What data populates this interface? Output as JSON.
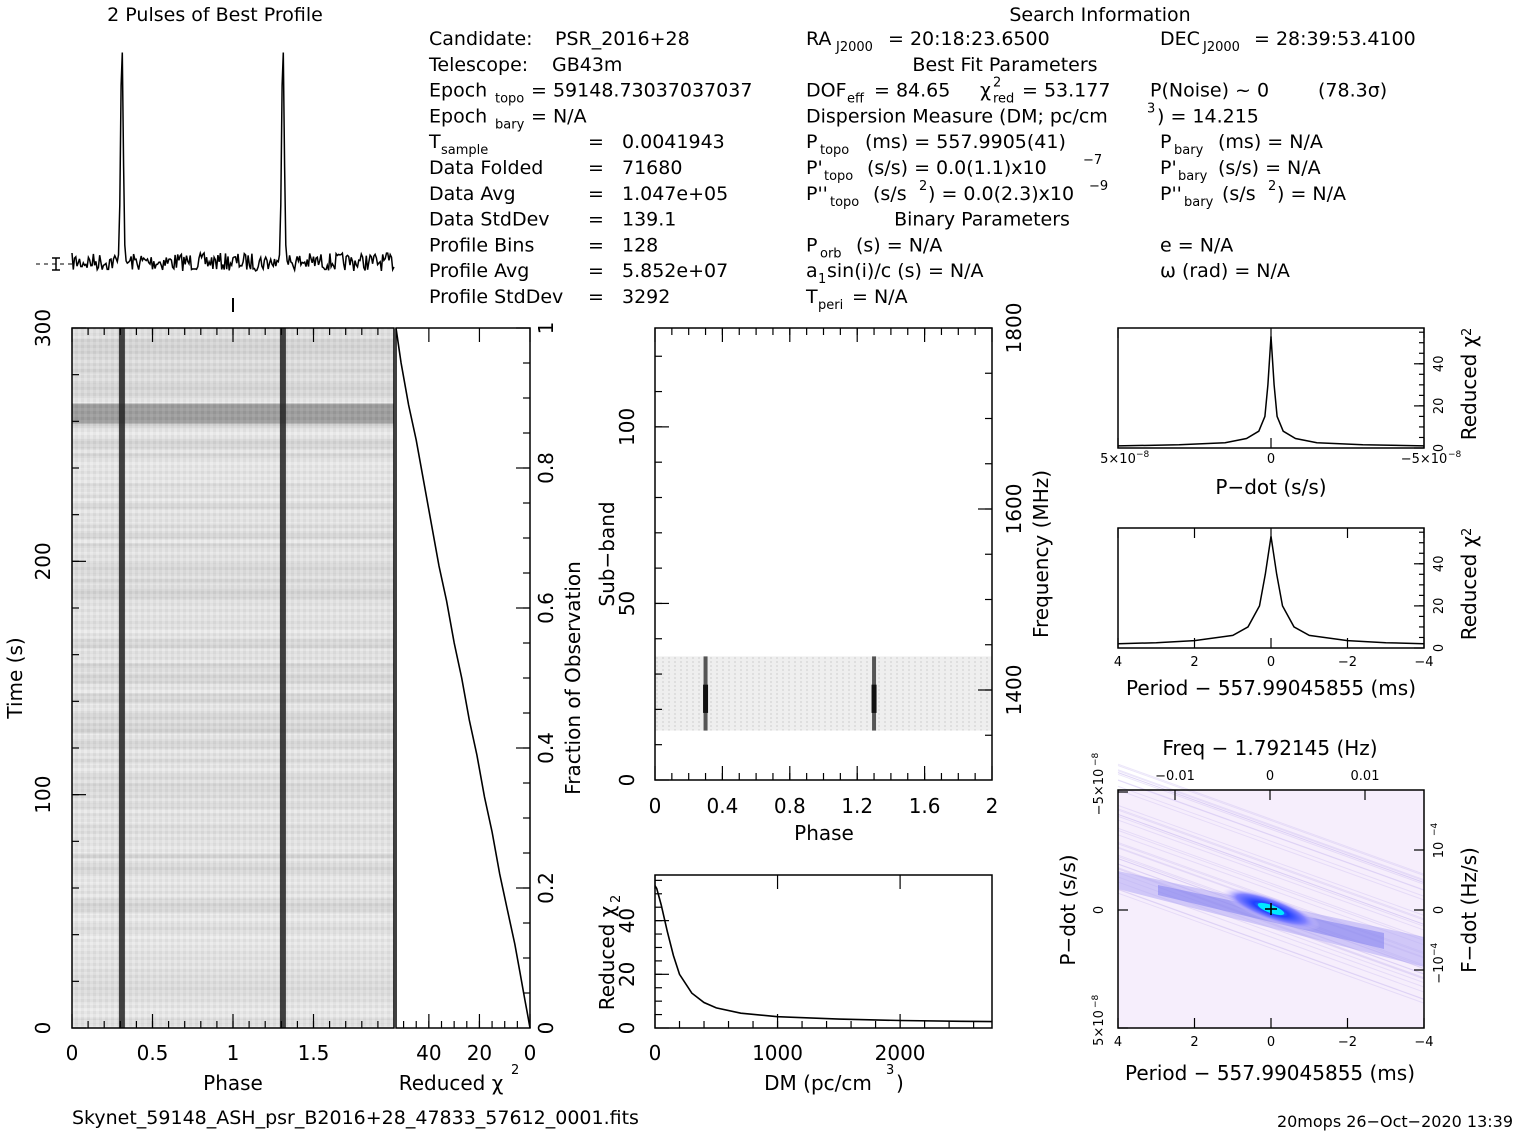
{
  "title": "2 Pulses of Best Profile",
  "search_info_heading": "Search Information",
  "info_left": [
    {
      "label": "Candidate:",
      "value": "PSR_2016+28"
    },
    {
      "label": "Telescope:",
      "value": "GB43m"
    },
    {
      "label": "Epoch",
      "sub": "topo",
      "value": "= 59148.73037037037"
    },
    {
      "label": "Epoch",
      "sub": "bary",
      "value": "= N/A"
    },
    {
      "label": "T",
      "sub": "sample",
      "value": "0.0041943"
    },
    {
      "label": "Data Folded",
      "value": "71680"
    },
    {
      "label": "Data Avg",
      "value": "1.047e+05"
    },
    {
      "label": "Data StdDev",
      "value": "139.1"
    },
    {
      "label": "Profile Bins",
      "value": "128"
    },
    {
      "label": "Profile Avg",
      "value": "5.852e+07"
    },
    {
      "label": "Profile StdDev",
      "value": "3292"
    }
  ],
  "info_right": {
    "ra_label": "RA",
    "ra_sub": "J2000",
    "ra_value": "= 20:18:23.6500",
    "dec_label": "DEC",
    "dec_sub": "J2000",
    "dec_value": "= 28:39:53.4100",
    "best_fit_heading": "Best Fit Parameters",
    "dof_label": "DOF",
    "dof_sub": "eff",
    "dof_value": "= 84.65",
    "chi_label": "χ",
    "chi_sup": "2",
    "chi_sub": "red",
    "chi_value": "= 53.177",
    "pnoise": "P(Noise) ~ 0",
    "sigma": "(78.3σ)",
    "dm_line": "Dispersion Measure (DM; pc/cm",
    "dm_sup": "3",
    "dm_value": ") = 14.215",
    "ptopo_label": "P",
    "ptopo_sub": "topo",
    "ptopo_value": "(ms) =  557.9905(41)",
    "pbary_label": "P",
    "pbary_sub": "bary",
    "pbary_value": "(ms) = N/A",
    "pdtopo_label": "P'",
    "pdtopo_sub": "topo",
    "pdtopo_value": "(s/s) = 0.0(1.1)x10",
    "pdtopo_exp": "−7",
    "pdbary_label": "P'",
    "pdbary_sub": "bary",
    "pdbary_value": "(s/s) = N/A",
    "pddtopo_label": "P''",
    "pddtopo_sub": "topo",
    "pddtopo_value": "(s/s",
    "pddtopo_sup": "2",
    "pddtopo_value2": ") = 0.0(2.3)x10",
    "pddtopo_exp": "−9",
    "pddbary_label": "P''",
    "pddbary_sub": "bary",
    "pddbary_value": "(s/s",
    "pddbary_sup": "2",
    "pddbary_value2": ") = N/A",
    "binary_heading": "Binary Parameters",
    "porb_label": "P",
    "porb_sub": "orb",
    "porb_value": "(s) = N/A",
    "e_value": "e = N/A",
    "a1_label": "a",
    "a1_sub": "1",
    "a1_value": "sin(i)/c (s) = N/A",
    "omega_value": "ω (rad) = N/A",
    "tperi_label": "T",
    "tperi_sub": "peri",
    "tperi_value": "= N/A"
  },
  "footer_file": "Skynet_59148_ASH_psr_B2016+28_47833_57612_0001.fits",
  "footer_stamp": "20mops 26−Oct−2020 13:39",
  "chart_data": [
    {
      "type": "line",
      "name": "profile",
      "title": "2 Pulses of Best Profile",
      "x_range": [
        0,
        2
      ],
      "pulse_phases": [
        0.31,
        1.31
      ],
      "error_bar_label": "",
      "values_note": ""
    },
    {
      "type": "heatmap",
      "name": "time-phase",
      "xlabel": "Phase",
      "ylabel": "Time (s)",
      "xlim": [
        0,
        2
      ],
      "ylim": [
        0,
        300
      ],
      "x_ticks": [
        "0",
        "0.5",
        "1",
        "1.5"
      ],
      "y_ticks": [
        "0",
        "100",
        "200",
        "300"
      ],
      "pulse_phases": [
        0.31,
        1.31
      ],
      "dark_time_bands": [
        [
          260,
          267
        ]
      ]
    },
    {
      "type": "line",
      "name": "reduced-chi2-vs-fraction",
      "xlabel": "Reduced χ",
      "xlabel_sup": "2",
      "ylabel": "Fraction of Observation",
      "xlim": [
        53,
        0
      ],
      "ylim": [
        0,
        1
      ],
      "x_ticks": [
        "40",
        "20",
        "0"
      ],
      "y_ticks": [
        "0.2",
        "0.4",
        "0.6",
        "0.8",
        "1"
      ],
      "x": [
        0,
        1,
        2,
        4,
        6,
        9,
        12,
        15,
        18,
        21,
        24,
        27,
        30,
        33,
        36,
        39,
        42,
        45,
        48,
        51,
        53
      ],
      "y": [
        0,
        0.02,
        0.04,
        0.08,
        0.12,
        0.17,
        0.22,
        0.28,
        0.33,
        0.39,
        0.44,
        0.5,
        0.55,
        0.61,
        0.66,
        0.72,
        0.78,
        0.84,
        0.89,
        0.95,
        1.0
      ]
    },
    {
      "type": "heatmap",
      "name": "subband-phase",
      "xlabel": "Phase",
      "ylabel": "Sub−band",
      "ylabel_right": "Frequency (MHz)",
      "xlim": [
        0,
        2
      ],
      "ylim": [
        0,
        128
      ],
      "x_ticks": [
        "0",
        "0.4",
        "0.8",
        "1.2",
        "1.6",
        "2"
      ],
      "y_ticks": [
        "0",
        "50",
        "100"
      ],
      "y_right_ticks": [
        "1400",
        "1600",
        "1800"
      ],
      "data_subbands": [
        14,
        35
      ],
      "pulse_phases": [
        0.3,
        1.3
      ]
    },
    {
      "type": "line",
      "name": "dm-chi2",
      "xlabel": "DM (pc/cm",
      "xlabel_sup": "3",
      "xlabel_end": ")",
      "ylabel": "Reduced χ",
      "ylabel_sup": "2",
      "xlim": [
        0,
        2750
      ],
      "ylim": [
        0,
        57
      ],
      "x_ticks": [
        "0",
        "1000",
        "2000"
      ],
      "y_ticks": [
        "0",
        "20",
        "40"
      ],
      "x": [
        0,
        14,
        50,
        100,
        150,
        200,
        300,
        400,
        500,
        700,
        1000,
        1500,
        2000,
        2500,
        2750
      ],
      "y": [
        53,
        52,
        46,
        36,
        27,
        20,
        13,
        9.5,
        7.5,
        5.5,
        4.2,
        3.3,
        2.8,
        2.5,
        2.4
      ]
    },
    {
      "type": "line",
      "name": "pdot-chi2",
      "xlabel": "P−dot (s/s)",
      "ylabel": "Reduced χ",
      "ylabel_sup": "2",
      "xlim": [
        5e-08,
        -5e-08
      ],
      "ylim": [
        0,
        57
      ],
      "x_ticks": [
        "5×10",
        "0",
        "−5×10"
      ],
      "x_tick_exp": "−8",
      "y_ticks": [
        "0",
        "20",
        "40"
      ],
      "x": [
        5e-08,
        3e-08,
        1.5e-08,
        8e-09,
        4e-09,
        2e-09,
        1e-09,
        0,
        -1e-09,
        -2e-09,
        -4e-09,
        -8e-09,
        -1.5e-08,
        -3e-08,
        -5e-08
      ],
      "y": [
        1,
        1.5,
        2.5,
        4.5,
        8,
        15,
        30,
        53,
        30,
        15,
        8,
        4.5,
        2.5,
        1.5,
        1
      ]
    },
    {
      "type": "line",
      "name": "period-chi2",
      "xlabel": "Period − 557.99045855 (ms)",
      "ylabel": "Reduced χ",
      "ylabel_sup": "2",
      "xlim": [
        4,
        -4
      ],
      "ylim": [
        0,
        57
      ],
      "x_ticks": [
        "4",
        "2",
        "0",
        "−2",
        "−4"
      ],
      "y_ticks": [
        "0",
        "20",
        "40"
      ],
      "x": [
        4,
        3,
        2,
        1,
        0.6,
        0.3,
        0.15,
        0,
        -0.15,
        -0.3,
        -0.6,
        -1,
        -2,
        -3,
        -4
      ],
      "y": [
        2,
        2.5,
        3.5,
        6,
        10,
        20,
        35,
        53,
        35,
        20,
        10,
        6,
        3.5,
        2.5,
        2
      ]
    },
    {
      "type": "heatmap",
      "name": "period-pdot",
      "xlabel": "Period − 557.99045855 (ms)",
      "ylabel": "P−dot (s/s)",
      "xlabel_top": "Freq − 1.792145 (Hz)",
      "ylabel_right": "F−dot (Hz/s)",
      "xlim": [
        4,
        -4
      ],
      "ylim": [
        5e-08,
        -5e-08
      ],
      "x_ticks": [
        "4",
        "2",
        "0",
        "−2",
        "−4"
      ],
      "x_top_ticks": [
        "−0.01",
        "0",
        "0.01"
      ],
      "y_ticks": [
        "5×10",
        "0",
        "−5×10"
      ],
      "y_tick_exp": "−8",
      "y_right_ticks": [
        "−10",
        "0",
        "10"
      ],
      "y_right_exp": "−4",
      "peak": [
        0,
        0
      ]
    }
  ]
}
